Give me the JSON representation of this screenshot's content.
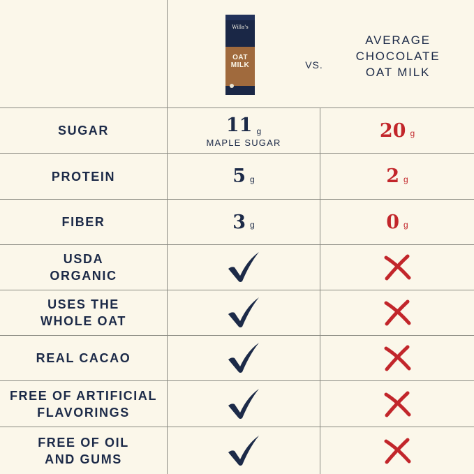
{
  "header": {
    "product_carton": {
      "brand": "Willa's",
      "name_line1": "OAT",
      "name_line2": "MILK"
    },
    "vs_label": "VS.",
    "competitor_line1": "AVERAGE",
    "competitor_line2": "CHOCOLATE",
    "competitor_line3": "OAT MILK"
  },
  "colors": {
    "background": "#fbf7ea",
    "navy": "#1c2a48",
    "red": "#c2262b",
    "grid": "#8a8a82"
  },
  "rows": [
    {
      "label_lines": [
        "SUGAR"
      ],
      "willas_value": "11",
      "willas_unit": "g",
      "willas_note": "MAPLE SUGAR",
      "avg_value": "20",
      "avg_unit": "g"
    },
    {
      "label_lines": [
        "PROTEIN"
      ],
      "willas_value": "5",
      "willas_unit": "g",
      "avg_value": "2",
      "avg_unit": "g"
    },
    {
      "label_lines": [
        "FIBER"
      ],
      "willas_value": "3",
      "willas_unit": "g",
      "avg_value": "0",
      "avg_unit": "g"
    },
    {
      "label_lines": [
        "USDA",
        "ORGANIC"
      ],
      "willas_icon": "check-icon",
      "avg_icon": "cross-icon"
    },
    {
      "label_lines": [
        "USES THE",
        "WHOLE OAT"
      ],
      "willas_icon": "check-icon",
      "avg_icon": "cross-icon"
    },
    {
      "label_lines": [
        "REAL CACAO"
      ],
      "willas_icon": "check-icon",
      "avg_icon": "cross-icon"
    },
    {
      "label_lines": [
        "FREE OF ARTIFICIAL",
        "FLAVORINGS"
      ],
      "willas_icon": "check-icon",
      "avg_icon": "cross-icon"
    },
    {
      "label_lines": [
        "FREE OF OIL",
        "AND GUMS"
      ],
      "willas_icon": "check-icon",
      "avg_icon": "cross-icon"
    }
  ]
}
